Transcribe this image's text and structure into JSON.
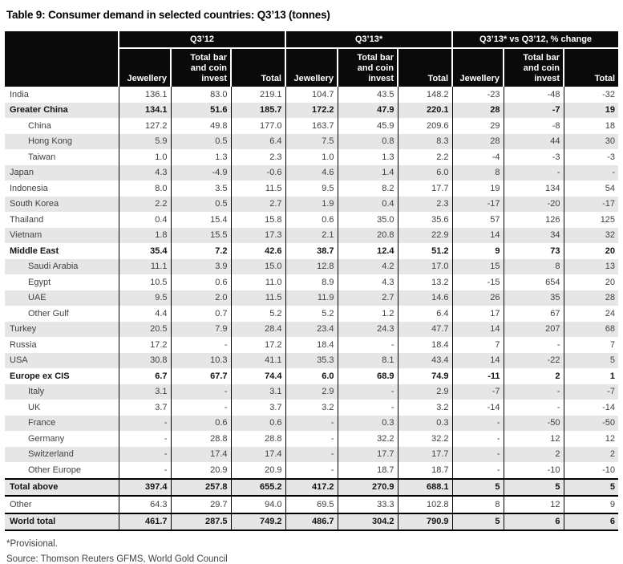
{
  "title": "Table 9: Consumer demand in selected countries: Q3’13 (tonnes)",
  "table": {
    "groups": [
      {
        "label": "Q3’12"
      },
      {
        "label": "Q3’13*"
      },
      {
        "label": "Q3’13* vs Q3’12, % change"
      }
    ],
    "subheaders": [
      "Jewellery",
      "Total bar and coin invest",
      "Total"
    ],
    "rows": [
      {
        "name": "India",
        "bold": false,
        "indent": false,
        "values": [
          "136.1",
          "83.0",
          "219.1",
          "104.7",
          "43.5",
          "148.2",
          "-23",
          "-48",
          "-32"
        ]
      },
      {
        "name": "Greater China",
        "bold": true,
        "indent": false,
        "values": [
          "134.1",
          "51.6",
          "185.7",
          "172.2",
          "47.9",
          "220.1",
          "28",
          "-7",
          "19"
        ]
      },
      {
        "name": "China",
        "bold": false,
        "indent": true,
        "values": [
          "127.2",
          "49.8",
          "177.0",
          "163.7",
          "45.9",
          "209.6",
          "29",
          "-8",
          "18"
        ]
      },
      {
        "name": "Hong Kong",
        "bold": false,
        "indent": true,
        "values": [
          "5.9",
          "0.5",
          "6.4",
          "7.5",
          "0.8",
          "8.3",
          "28",
          "44",
          "30"
        ]
      },
      {
        "name": "Taiwan",
        "bold": false,
        "indent": true,
        "values": [
          "1.0",
          "1.3",
          "2.3",
          "1.0",
          "1.3",
          "2.2",
          "-4",
          "-3",
          "-3"
        ]
      },
      {
        "name": "Japan",
        "bold": false,
        "indent": false,
        "values": [
          "4.3",
          "-4.9",
          "-0.6",
          "4.6",
          "1.4",
          "6.0",
          "8",
          "-",
          "-"
        ]
      },
      {
        "name": "Indonesia",
        "bold": false,
        "indent": false,
        "values": [
          "8.0",
          "3.5",
          "11.5",
          "9.5",
          "8.2",
          "17.7",
          "19",
          "134",
          "54"
        ]
      },
      {
        "name": "South Korea",
        "bold": false,
        "indent": false,
        "values": [
          "2.2",
          "0.5",
          "2.7",
          "1.9",
          "0.4",
          "2.3",
          "-17",
          "-20",
          "-17"
        ]
      },
      {
        "name": "Thailand",
        "bold": false,
        "indent": false,
        "values": [
          "0.4",
          "15.4",
          "15.8",
          "0.6",
          "35.0",
          "35.6",
          "57",
          "126",
          "125"
        ]
      },
      {
        "name": "Vietnam",
        "bold": false,
        "indent": false,
        "values": [
          "1.8",
          "15.5",
          "17.3",
          "2.1",
          "20.8",
          "22.9",
          "14",
          "34",
          "32"
        ]
      },
      {
        "name": "Middle East",
        "bold": true,
        "indent": false,
        "values": [
          "35.4",
          "7.2",
          "42.6",
          "38.7",
          "12.4",
          "51.2",
          "9",
          "73",
          "20"
        ]
      },
      {
        "name": "Saudi Arabia",
        "bold": false,
        "indent": true,
        "values": [
          "11.1",
          "3.9",
          "15.0",
          "12.8",
          "4.2",
          "17.0",
          "15",
          "8",
          "13"
        ]
      },
      {
        "name": "Egypt",
        "bold": false,
        "indent": true,
        "values": [
          "10.5",
          "0.6",
          "11.0",
          "8.9",
          "4.3",
          "13.2",
          "-15",
          "654",
          "20"
        ]
      },
      {
        "name": "UAE",
        "bold": false,
        "indent": true,
        "values": [
          "9.5",
          "2.0",
          "11.5",
          "11.9",
          "2.7",
          "14.6",
          "26",
          "35",
          "28"
        ]
      },
      {
        "name": "Other Gulf",
        "bold": false,
        "indent": true,
        "values": [
          "4.4",
          "0.7",
          "5.2",
          "5.2",
          "1.2",
          "6.4",
          "17",
          "67",
          "24"
        ]
      },
      {
        "name": "Turkey",
        "bold": false,
        "indent": false,
        "values": [
          "20.5",
          "7.9",
          "28.4",
          "23.4",
          "24.3",
          "47.7",
          "14",
          "207",
          "68"
        ]
      },
      {
        "name": "Russia",
        "bold": false,
        "indent": false,
        "values": [
          "17.2",
          "-",
          "17.2",
          "18.4",
          "-",
          "18.4",
          "7",
          "-",
          "7"
        ]
      },
      {
        "name": "USA",
        "bold": false,
        "indent": false,
        "values": [
          "30.8",
          "10.3",
          "41.1",
          "35.3",
          "8.1",
          "43.4",
          "14",
          "-22",
          "5"
        ]
      },
      {
        "name": "Europe ex CIS",
        "bold": true,
        "indent": false,
        "values": [
          "6.7",
          "67.7",
          "74.4",
          "6.0",
          "68.9",
          "74.9",
          "-11",
          "2",
          "1"
        ]
      },
      {
        "name": "Italy",
        "bold": false,
        "indent": true,
        "values": [
          "3.1",
          "-",
          "3.1",
          "2.9",
          "-",
          "2.9",
          "-7",
          "-",
          "-7"
        ]
      },
      {
        "name": "UK",
        "bold": false,
        "indent": true,
        "values": [
          "3.7",
          "-",
          "3.7",
          "3.2",
          "-",
          "3.2",
          "-14",
          "-",
          "-14"
        ]
      },
      {
        "name": "France",
        "bold": false,
        "indent": true,
        "values": [
          "-",
          "0.6",
          "0.6",
          "-",
          "0.3",
          "0.3",
          "-",
          "-50",
          "-50"
        ]
      },
      {
        "name": "Germany",
        "bold": false,
        "indent": true,
        "values": [
          "-",
          "28.8",
          "28.8",
          "-",
          "32.2",
          "32.2",
          "-",
          "12",
          "12"
        ]
      },
      {
        "name": "Switzerland",
        "bold": false,
        "indent": true,
        "values": [
          "-",
          "17.4",
          "17.4",
          "-",
          "17.7",
          "17.7",
          "-",
          "2",
          "2"
        ]
      },
      {
        "name": "Other Europe",
        "bold": false,
        "indent": true,
        "values": [
          "-",
          "20.9",
          "20.9",
          "-",
          "18.7",
          "18.7",
          "-",
          "-10",
          "-10"
        ]
      },
      {
        "name": "Total above",
        "bold": true,
        "indent": false,
        "rule_top": true,
        "values": [
          "397.4",
          "257.8",
          "655.2",
          "417.2",
          "270.9",
          "688.1",
          "5",
          "5",
          "5"
        ]
      },
      {
        "name": "Other",
        "bold": false,
        "indent": false,
        "rule_top": true,
        "values": [
          "64.3",
          "29.7",
          "94.0",
          "69.5",
          "33.3",
          "102.8",
          "8",
          "12",
          "9"
        ]
      },
      {
        "name": "World total",
        "bold": true,
        "indent": false,
        "rule_top": true,
        "rule_bottom": true,
        "values": [
          "461.7",
          "287.5",
          "749.2",
          "486.7",
          "304.2",
          "790.9",
          "5",
          "6",
          "6"
        ]
      }
    ]
  },
  "footnotes": {
    "provisional": "*Provisional.",
    "source": "Source: Thomson Reuters GFMS, World Gold Council"
  }
}
